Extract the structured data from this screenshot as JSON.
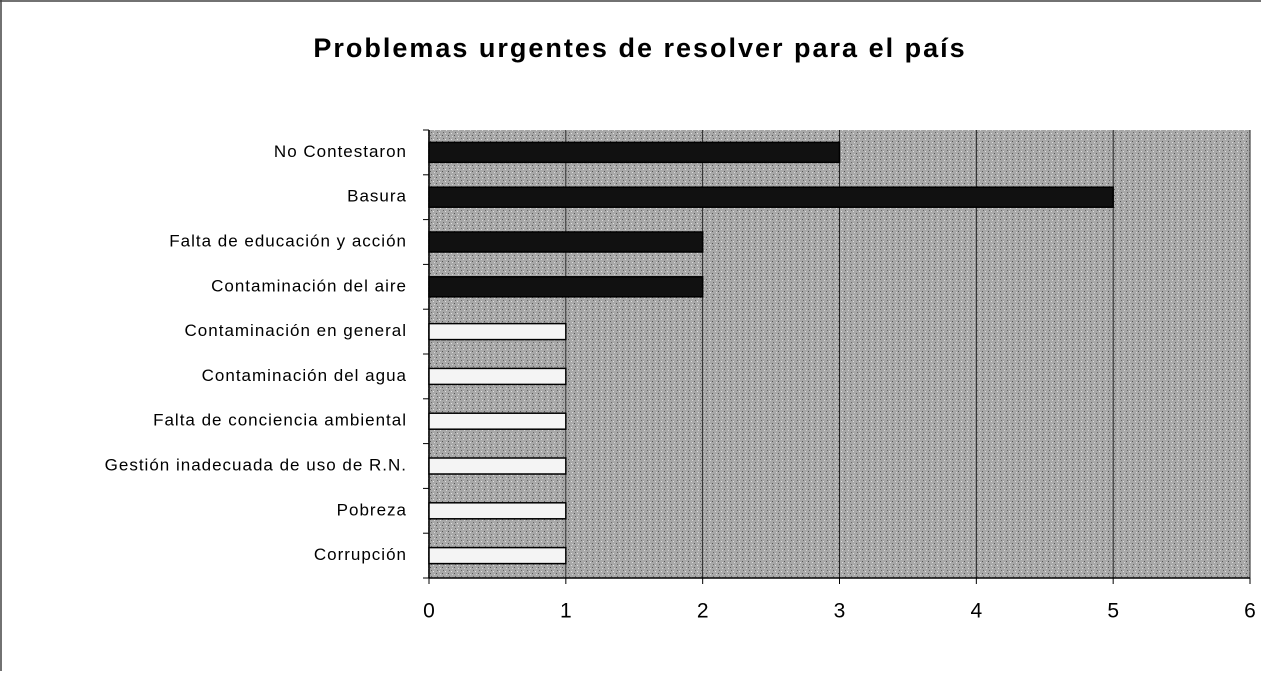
{
  "chart_data": {
    "type": "bar",
    "orientation": "horizontal",
    "title": "Problemas urgentes de resolver para el país",
    "categories": [
      "No Contestaron",
      "Basura",
      "Falta de educación y acción",
      "Contaminación del aire",
      "Contaminación en general",
      "Contaminación del agua",
      "Falta de conciencia ambiental",
      "Gestión inadecuada de uso de R.N.",
      "Pobreza",
      "Corrupción"
    ],
    "values": [
      3,
      5,
      2,
      2,
      1,
      1,
      1,
      1,
      1,
      1
    ],
    "colors": [
      "#111111",
      "#111111",
      "#111111",
      "#111111",
      "#f4f4f4",
      "#f4f4f4",
      "#f4f4f4",
      "#f4f4f4",
      "#f4f4f4",
      "#f4f4f4"
    ],
    "xlim": [
      0,
      6
    ],
    "xticks": [
      0,
      1,
      2,
      3,
      4,
      5,
      6
    ],
    "grid": true
  }
}
